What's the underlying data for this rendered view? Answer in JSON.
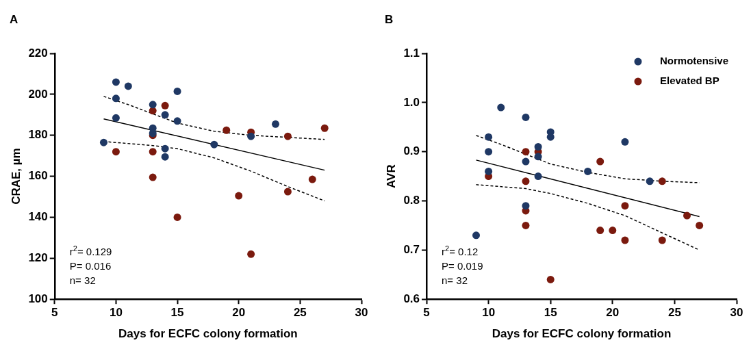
{
  "chart_data": [
    {
      "type": "scatter",
      "title": "A",
      "xlabel": "Days for ECFC colony formation",
      "ylabel": "CRAE, µm",
      "xlim": [
        5,
        30
      ],
      "xticks": [
        5,
        10,
        15,
        20,
        25,
        30
      ],
      "ylim": [
        100,
        220
      ],
      "yticks": [
        100,
        120,
        140,
        160,
        180,
        200,
        220
      ],
      "grid": false,
      "legend": false,
      "marker": "circle",
      "annotations": [
        "r$^{2}$= 0.129",
        "P= 0.016",
        "n= 32"
      ],
      "series": [
        {
          "color": "#1f3864",
          "x": [
            9,
            10,
            10,
            10,
            11,
            13,
            13,
            13,
            14,
            14,
            14,
            15,
            15,
            18,
            21,
            23
          ],
          "values": [
            176.5,
            206,
            198,
            188.5,
            204,
            195,
            183.5,
            181,
            190,
            173.5,
            169.5,
            201.5,
            187,
            175.5,
            179.5,
            185.5
          ]
        },
        {
          "color": "#7b1a0e",
          "x": [
            10,
            13,
            13,
            13,
            13,
            14,
            15,
            19,
            20,
            21,
            21,
            24,
            24,
            26,
            27
          ],
          "values": [
            172,
            192,
            180,
            172,
            159.5,
            194.5,
            140,
            182.5,
            150.5,
            181.5,
            122,
            179.5,
            152.5,
            158.5,
            183.5
          ]
        },
        {
          "type": "line",
          "color": "#000000",
          "line_style": "solid",
          "marker": "none",
          "x": [
            9,
            27
          ],
          "values": [
            188,
            163
          ]
        },
        {
          "type": "line",
          "color": "#000000",
          "line_style": "dashed",
          "marker": "none",
          "x": [
            9,
            11,
            13,
            15,
            18,
            21,
            24,
            27
          ],
          "values": [
            199,
            195,
            190.5,
            186,
            182,
            180,
            179,
            178
          ]
        },
        {
          "type": "line",
          "color": "#000000",
          "line_style": "dashed",
          "marker": "none",
          "x": [
            9,
            13,
            15,
            18,
            21,
            24,
            27
          ],
          "values": [
            177,
            175,
            173.5,
            169,
            162.5,
            155,
            148
          ]
        }
      ]
    },
    {
      "type": "scatter",
      "title": "B",
      "xlabel": "Days for ECFC colony formation",
      "ylabel": "AVR",
      "xlim": [
        5,
        30
      ],
      "xticks": [
        5,
        10,
        15,
        20,
        25,
        30
      ],
      "ylim": [
        0.6,
        1.1
      ],
      "yticks": [
        0.6,
        0.7,
        0.8,
        0.9,
        {
          "value": 1,
          "label": "1.0"
        },
        1.1
      ],
      "grid": false,
      "legend": "top right",
      "marker": "circle",
      "annotations": [
        "r$^{2}$= 0.12",
        "P= 0.019",
        "n= 32"
      ],
      "series": [
        {
          "name": "Normotensive",
          "color": "#1f3864",
          "x": [
            9,
            10,
            10,
            10,
            11,
            13,
            13,
            13,
            14,
            14,
            14,
            15,
            15,
            18,
            21,
            23
          ],
          "values": [
            0.73,
            0.93,
            0.9,
            0.86,
            0.99,
            0.97,
            0.88,
            0.79,
            0.91,
            0.89,
            0.85,
            0.94,
            0.93,
            0.86,
            0.92,
            0.84
          ]
        },
        {
          "name": "Elevated BP",
          "color": "#7b1a0e",
          "x": [
            10,
            13,
            13,
            13,
            13,
            14,
            15,
            19,
            19,
            20,
            21,
            21,
            24,
            24,
            26,
            27
          ],
          "values": [
            0.85,
            0.9,
            0.84,
            0.78,
            0.75,
            0.9,
            0.64,
            0.88,
            0.74,
            0.74,
            0.79,
            0.72,
            0.84,
            0.72,
            0.77,
            0.75
          ]
        },
        {
          "type": "line",
          "color": "#000000",
          "line_style": "solid",
          "marker": "none",
          "x": [
            9,
            27
          ],
          "values": [
            0.883,
            0.768
          ]
        },
        {
          "type": "line",
          "color": "#000000",
          "line_style": "dashed",
          "marker": "none",
          "x": [
            9,
            11,
            13,
            15,
            18,
            21,
            24,
            27
          ],
          "values": [
            0.933,
            0.915,
            0.895,
            0.875,
            0.858,
            0.845,
            0.84,
            0.837
          ]
        },
        {
          "type": "line",
          "color": "#000000",
          "line_style": "dashed",
          "marker": "none",
          "x": [
            9,
            13,
            15,
            18,
            21,
            24,
            27
          ],
          "values": [
            0.833,
            0.825,
            0.815,
            0.795,
            0.77,
            0.735,
            0.7
          ]
        }
      ]
    }
  ]
}
